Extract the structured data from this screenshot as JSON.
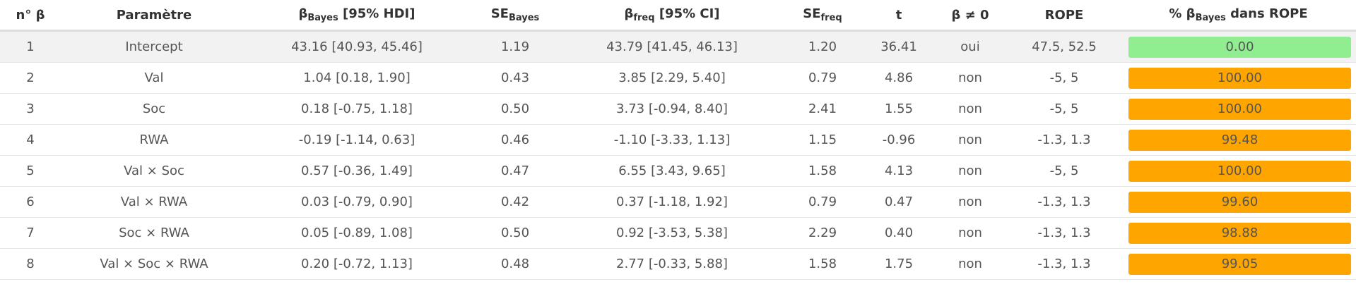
{
  "table": {
    "header": [
      {
        "main": "n° β"
      },
      {
        "main": "Paramètre"
      },
      {
        "main": "β",
        "sub": "Bayes",
        "rest": " [95% HDI]"
      },
      {
        "main": "SE",
        "sub": "Bayes"
      },
      {
        "main": "β",
        "sub": "freq",
        "rest": " [95% CI]"
      },
      {
        "main": "SE",
        "sub": "freq"
      },
      {
        "main": "t"
      },
      {
        "main": "β ≠ 0"
      },
      {
        "main": "ROPE"
      },
      {
        "main": "% β",
        "sub": "Bayes",
        "rest": " dans ROPE"
      }
    ],
    "rows": [
      [
        "1",
        "Intercept",
        "43.16 [40.93, 45.46]",
        "1.19",
        "43.79 [41.45, 46.13]",
        "1.20",
        "36.41",
        "oui",
        "47.5, 52.5",
        "0.00"
      ],
      [
        "2",
        "Val",
        "1.04 [0.18, 1.90]",
        "0.43",
        "3.85 [2.29, 5.40]",
        "0.79",
        "4.86",
        "non",
        "-5, 5",
        "100.00"
      ],
      [
        "3",
        "Soc",
        "0.18 [-0.75, 1.18]",
        "0.50",
        "3.73 [-0.94, 8.40]",
        "2.41",
        "1.55",
        "non",
        "-5, 5",
        "100.00"
      ],
      [
        "4",
        "RWA",
        "-0.19 [-1.14, 0.63]",
        "0.46",
        "-1.10 [-3.33, 1.13]",
        "1.15",
        "-0.96",
        "non",
        "-1.3, 1.3",
        "99.48"
      ],
      [
        "5",
        "Val × Soc",
        "0.57 [-0.36, 1.49]",
        "0.47",
        "6.55 [3.43, 9.65]",
        "1.58",
        "4.13",
        "non",
        "-5, 5",
        "100.00"
      ],
      [
        "6",
        "Val × RWA",
        "0.03 [-0.79, 0.90]",
        "0.42",
        "0.37 [-1.18, 1.92]",
        "0.79",
        "0.47",
        "non",
        "-1.3, 1.3",
        "99.60"
      ],
      [
        "7",
        "Soc × RWA",
        "0.05 [-0.89, 1.08]",
        "0.50",
        "0.92 [-3.53, 5.38]",
        "2.29",
        "0.40",
        "non",
        "-1.3, 1.3",
        "98.88"
      ],
      [
        "8",
        "Val × Soc × RWA",
        "0.20 [-0.72, 1.13]",
        "0.48",
        "2.77 [-0.33, 5.88]",
        "1.58",
        "1.75",
        "non",
        "-1.3, 1.3",
        "99.05"
      ]
    ],
    "rope_colors": [
      "#90ee90",
      "#ffa500",
      "#ffa500",
      "#ffa500",
      "#ffa500",
      "#ffa500",
      "#ffa500",
      "#ffa500"
    ],
    "highlight_row_color": "#f2f2f2"
  }
}
